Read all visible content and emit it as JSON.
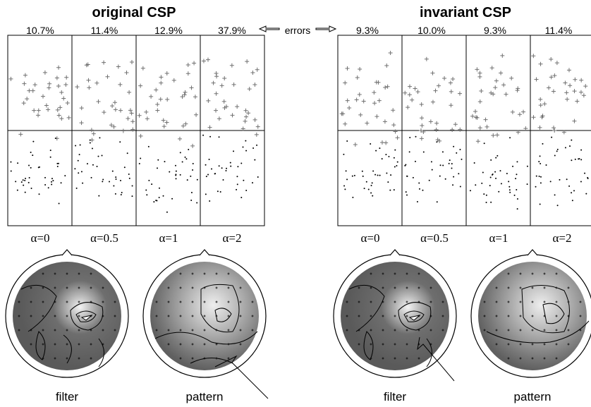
{
  "left": {
    "title": "original CSP",
    "errors": [
      "10.7%",
      "11.4%",
      "12.9%",
      "37.9%"
    ],
    "alphas": [
      "α=0",
      "α=0.5",
      "α=1",
      "α=2"
    ],
    "captions": [
      "filter",
      "pattern"
    ]
  },
  "center": {
    "errors_label": "errors"
  },
  "right": {
    "title": "invariant CSP",
    "errors": [
      "9.3%",
      "10.0%",
      "9.3%",
      "11.4%"
    ],
    "alphas": [
      "α=0",
      "α=0.5",
      "α=1",
      "α=2"
    ],
    "captions": [
      "filter",
      "pattern"
    ]
  },
  "colors": {
    "plus_marker": "#707070",
    "dot_marker": "#000000",
    "head_dark": "#5a5a5a",
    "head_light": "#e8e8e8"
  }
}
